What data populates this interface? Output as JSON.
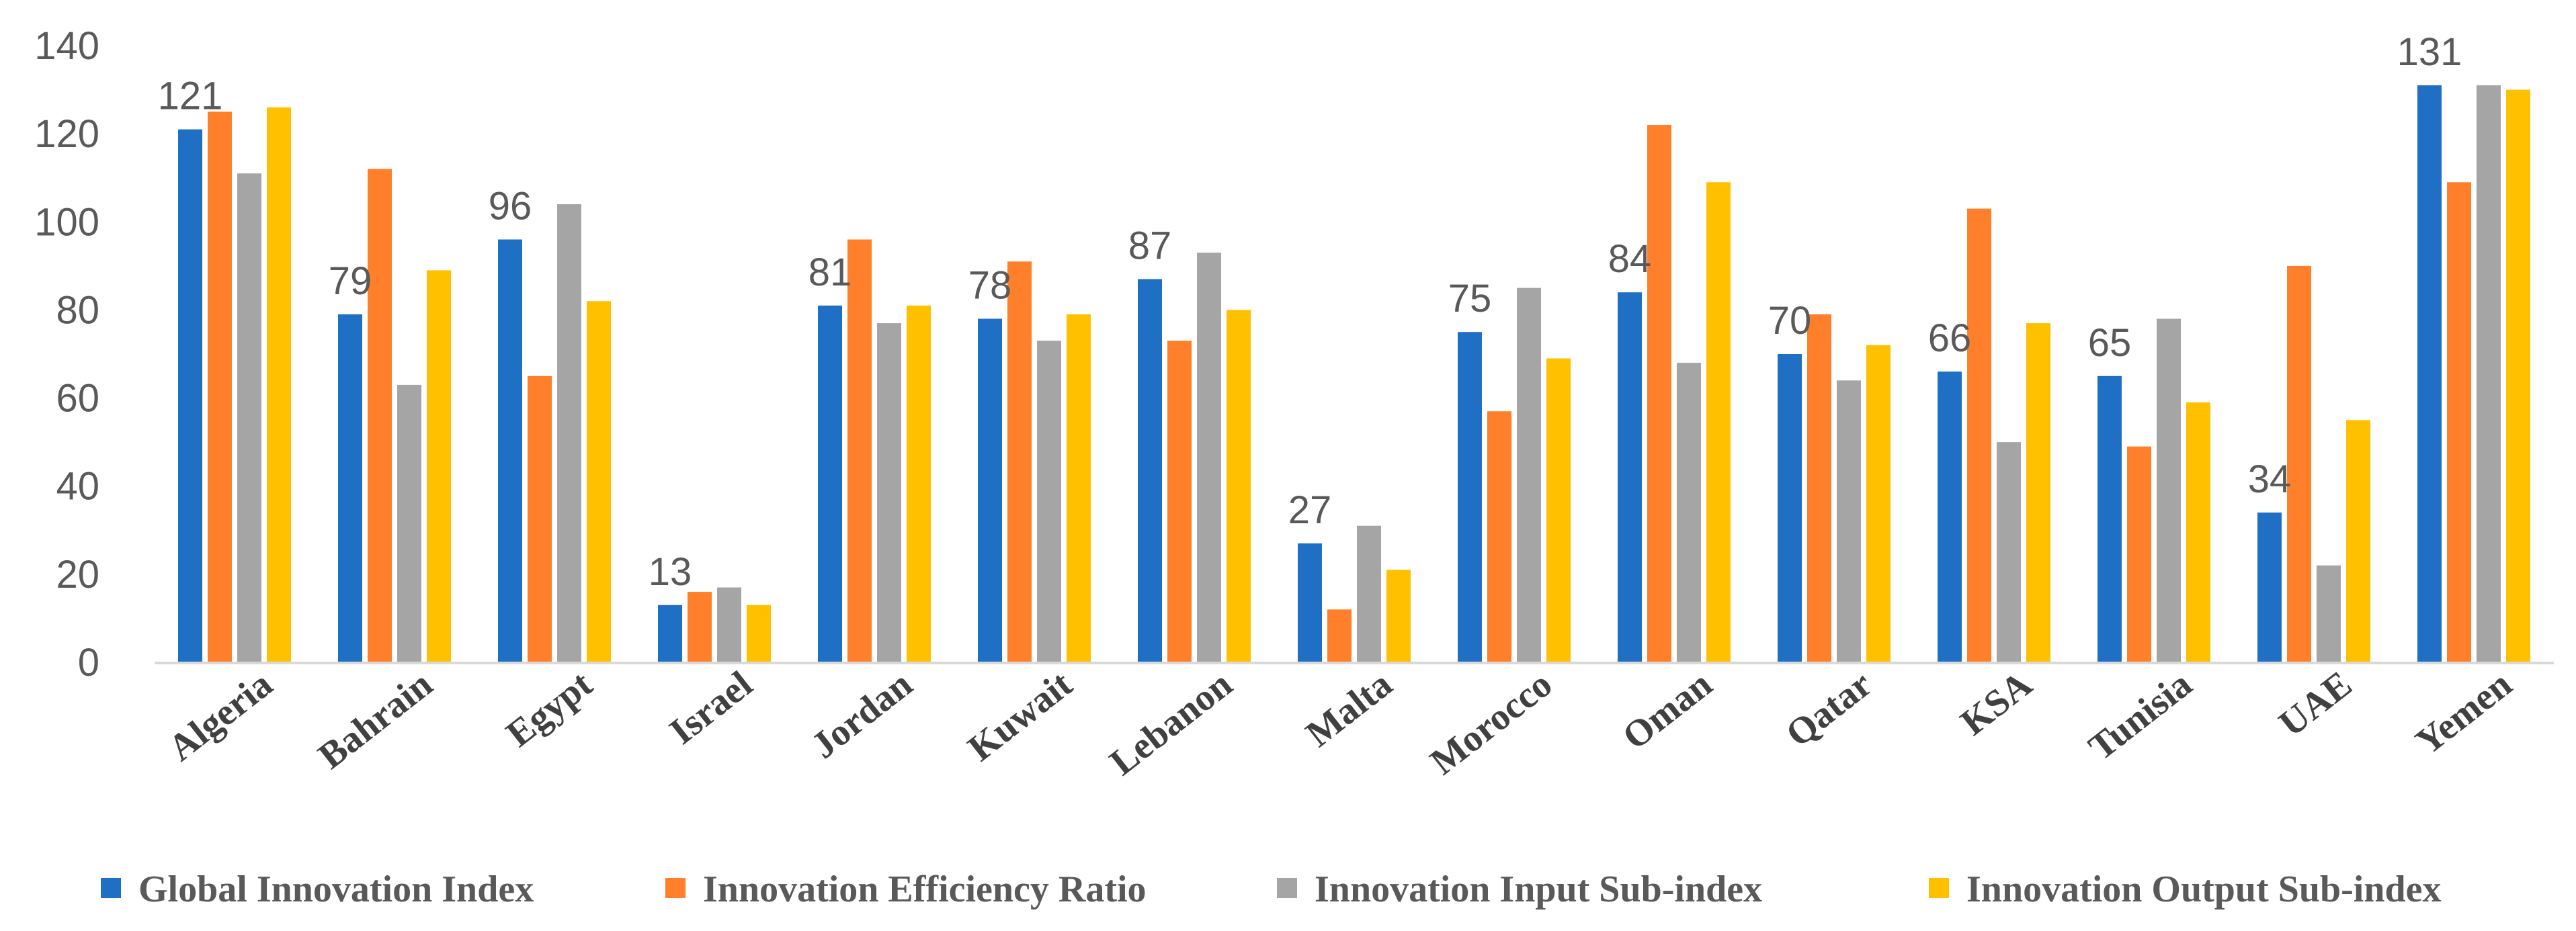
{
  "chart_data": {
    "type": "bar",
    "title": "",
    "xlabel": "",
    "ylabel": "",
    "ylim": [
      0,
      140
    ],
    "yticks": [
      0,
      20,
      40,
      60,
      80,
      100,
      120,
      140
    ],
    "ytick_labels": [
      "0",
      "20",
      "40",
      "60",
      "80",
      "100",
      "120",
      "140"
    ],
    "grid": false,
    "legend_position": "bottom",
    "categories": [
      "Algeria",
      "Bahrain",
      "Egypt",
      "Israel",
      "Jordan",
      "Kuwait",
      "Lebanon",
      "Malta",
      "Morocco",
      "Oman",
      "Qatar",
      "KSA",
      "Tunisia",
      "UAE",
      "Yemen"
    ],
    "series": [
      {
        "name": "Global Innovation Index",
        "color": "#1F6FC5",
        "values": [
          121,
          79,
          96,
          13,
          81,
          78,
          87,
          27,
          75,
          84,
          70,
          66,
          65,
          34,
          131
        ]
      },
      {
        "name": "Innovation Efficiency Ratio",
        "color": "#FF7F2A",
        "values": [
          125,
          112,
          65,
          16,
          96,
          91,
          73,
          12,
          57,
          122,
          79,
          103,
          49,
          90,
          109
        ]
      },
      {
        "name": "Innovation Input Sub-index",
        "color": "#A5A5A5",
        "values": [
          111,
          63,
          104,
          17,
          77,
          73,
          93,
          31,
          85,
          68,
          64,
          50,
          78,
          22,
          131
        ]
      },
      {
        "name": "Innovation Output Sub-index",
        "color": "#FFC000",
        "values": [
          126,
          89,
          82,
          13,
          81,
          79,
          80,
          21,
          69,
          109,
          72,
          77,
          59,
          55,
          130
        ]
      }
    ],
    "data_labels": {
      "series_index": 0,
      "values": [
        "121",
        "79",
        "96",
        "13",
        "81",
        "78",
        "87",
        "27",
        "75",
        "84",
        "70",
        "66",
        "65",
        "34",
        "131"
      ]
    },
    "colors": {
      "axis": "#D9D9D9",
      "tick_text": "#595959",
      "category_text": "#404040"
    }
  }
}
